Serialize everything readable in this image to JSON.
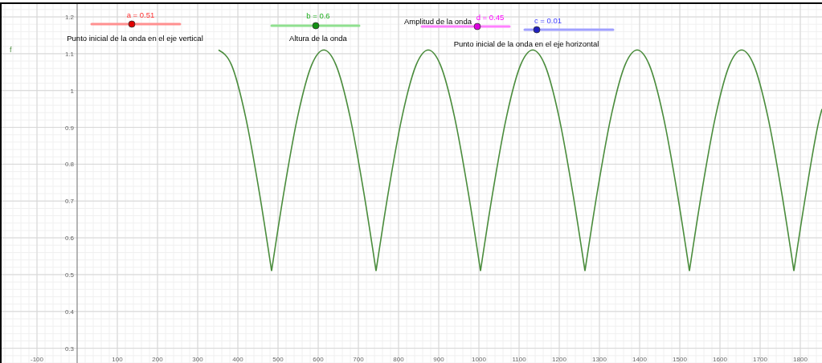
{
  "chart_data": {
    "type": "line",
    "x": [
      352,
      384,
      419,
      454,
      484,
      514,
      549,
      584,
      614,
      644,
      679,
      714,
      744,
      774,
      809,
      844,
      874,
      904,
      939,
      974,
      1004,
      1034,
      1069,
      1104,
      1134,
      1164,
      1199,
      1234,
      1264,
      1294,
      1329,
      1364,
      1394,
      1424,
      1459,
      1494,
      1524,
      1554,
      1589,
      1624,
      1654,
      1684,
      1719,
      1754,
      1784,
      1814,
      1849,
      1854
    ],
    "series": [
      {
        "name": "f",
        "color": "#4a8c3c",
        "values": [
          1.11,
          1.07,
          0.93,
          0.72,
          0.51,
          0.72,
          0.93,
          1.07,
          1.11,
          1.07,
          0.93,
          0.72,
          0.51,
          0.72,
          0.93,
          1.07,
          1.11,
          1.07,
          0.93,
          0.72,
          0.51,
          0.72,
          0.93,
          1.07,
          1.11,
          1.07,
          0.93,
          0.72,
          0.51,
          0.72,
          0.93,
          1.07,
          1.11,
          1.07,
          0.93,
          0.72,
          0.51,
          0.72,
          0.93,
          1.07,
          1.11,
          1.07,
          0.93,
          0.72,
          0.51,
          0.72,
          0.93,
          0.95
        ]
      }
    ],
    "xlim": [
      -188,
      1854
    ],
    "ylim": [
      0.26,
      1.235
    ],
    "xticks": [
      -100,
      100,
      200,
      300,
      400,
      500,
      600,
      700,
      800,
      900,
      1000,
      1100,
      1200,
      1300,
      1400,
      1500,
      1600,
      1700,
      1800
    ],
    "yticks": [
      0.3,
      0.4,
      0.5,
      0.6,
      0.7,
      0.8,
      0.9,
      1,
      1.1,
      1.2
    ],
    "grid": true,
    "line_style": "solid",
    "marker": "none",
    "annotations": [
      "a = 0.51",
      "Punto inicial de la onda en el eje vertical",
      "b = 0.6",
      "Altura de la onda",
      "Amplitud de la onda",
      "d = 0.45",
      "c = 0.01",
      "Punto inicial de la onda en el eje horizontal"
    ]
  }
}
